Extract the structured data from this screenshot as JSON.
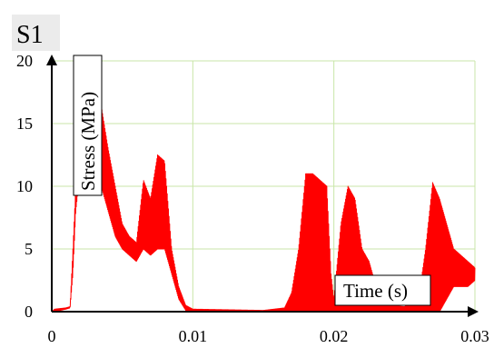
{
  "chart_data": {
    "type": "line",
    "title": "S1",
    "xlabel": "Time (s)",
    "ylabel": "Stress (MPa)",
    "xlim": [
      0,
      0.03
    ],
    "ylim": [
      0,
      20
    ],
    "xticks": [
      "0",
      "0.01",
      "0.02",
      "0.03"
    ],
    "yticks": [
      "0",
      "5",
      "10",
      "15",
      "20"
    ],
    "grid": true,
    "line_color": "#ff0000",
    "grid_color": "#c8e6a8",
    "series": [
      {
        "envelope": [
          {
            "t": 0.0,
            "lo": 0,
            "hi": 0
          },
          {
            "t": 0.0002,
            "lo": 0,
            "hi": 0.2
          },
          {
            "t": 0.001,
            "lo": 0.2,
            "hi": 0.3
          },
          {
            "t": 0.0013,
            "lo": 0.3,
            "hi": 0.4
          },
          {
            "t": 0.0015,
            "lo": 3,
            "hi": 5
          },
          {
            "t": 0.0017,
            "lo": 8,
            "hi": 10
          },
          {
            "t": 0.002,
            "lo": 11,
            "hi": 13
          },
          {
            "t": 0.0025,
            "lo": 12,
            "hi": 16
          },
          {
            "t": 0.003,
            "lo": 10,
            "hi": 17
          },
          {
            "t": 0.0035,
            "lo": 10,
            "hi": 16.5
          },
          {
            "t": 0.004,
            "lo": 8,
            "hi": 13
          },
          {
            "t": 0.0045,
            "lo": 6,
            "hi": 10
          },
          {
            "t": 0.005,
            "lo": 5,
            "hi": 7
          },
          {
            "t": 0.0055,
            "lo": 4.5,
            "hi": 6
          },
          {
            "t": 0.006,
            "lo": 4,
            "hi": 5.5
          },
          {
            "t": 0.0065,
            "lo": 5,
            "hi": 10.5
          },
          {
            "t": 0.007,
            "lo": 4.5,
            "hi": 9
          },
          {
            "t": 0.0075,
            "lo": 5,
            "hi": 12.5
          },
          {
            "t": 0.008,
            "lo": 5,
            "hi": 12
          },
          {
            "t": 0.0085,
            "lo": 3,
            "hi": 5
          },
          {
            "t": 0.009,
            "lo": 1,
            "hi": 2
          },
          {
            "t": 0.0095,
            "lo": 0.1,
            "hi": 0.5
          },
          {
            "t": 0.01,
            "lo": 0,
            "hi": 0.2
          },
          {
            "t": 0.015,
            "lo": 0,
            "hi": 0.1
          },
          {
            "t": 0.0165,
            "lo": 0,
            "hi": 0.3
          },
          {
            "t": 0.017,
            "lo": 0,
            "hi": 1.5
          },
          {
            "t": 0.0175,
            "lo": 0,
            "hi": 5
          },
          {
            "t": 0.018,
            "lo": 0,
            "hi": 11
          },
          {
            "t": 0.0185,
            "lo": 0,
            "hi": 11
          },
          {
            "t": 0.019,
            "lo": 0,
            "hi": 10.5
          },
          {
            "t": 0.0195,
            "lo": 0,
            "hi": 10
          },
          {
            "t": 0.0198,
            "lo": 0,
            "hi": 3
          },
          {
            "t": 0.02,
            "lo": 0,
            "hi": 1
          },
          {
            "t": 0.0205,
            "lo": 0,
            "hi": 7
          },
          {
            "t": 0.021,
            "lo": 0,
            "hi": 10
          },
          {
            "t": 0.0215,
            "lo": 0,
            "hi": 9
          },
          {
            "t": 0.022,
            "lo": 0,
            "hi": 5
          },
          {
            "t": 0.0225,
            "lo": 0,
            "hi": 4
          },
          {
            "t": 0.023,
            "lo": 0,
            "hi": 2
          },
          {
            "t": 0.0235,
            "lo": 0,
            "hi": 1
          },
          {
            "t": 0.024,
            "lo": 0,
            "hi": 0.5
          },
          {
            "t": 0.025,
            "lo": 0,
            "hi": 0.4
          },
          {
            "t": 0.026,
            "lo": 0,
            "hi": 1
          },
          {
            "t": 0.0265,
            "lo": 0,
            "hi": 5
          },
          {
            "t": 0.027,
            "lo": 0,
            "hi": 10.3
          },
          {
            "t": 0.0275,
            "lo": 0,
            "hi": 9
          },
          {
            "t": 0.028,
            "lo": 1,
            "hi": 7
          },
          {
            "t": 0.0285,
            "lo": 2,
            "hi": 5
          },
          {
            "t": 0.029,
            "lo": 2,
            "hi": 4.5
          },
          {
            "t": 0.0295,
            "lo": 2,
            "hi": 4
          },
          {
            "t": 0.03,
            "lo": 2.5,
            "hi": 3.5
          }
        ]
      }
    ]
  }
}
